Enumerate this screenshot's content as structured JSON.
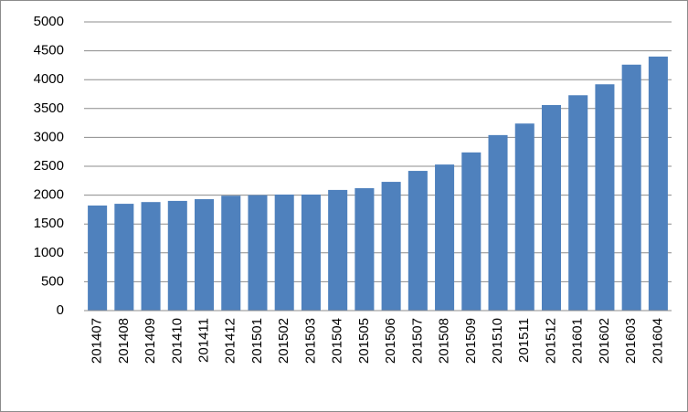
{
  "chart_data": {
    "type": "bar",
    "categories": [
      "201407",
      "201408",
      "201409",
      "201410",
      "201411",
      "201412",
      "201501",
      "201502",
      "201503",
      "201504",
      "201505",
      "201506",
      "201507",
      "201508",
      "201509",
      "201510",
      "201511",
      "201512",
      "201601",
      "201602",
      "201603",
      "201604"
    ],
    "values": [
      1820,
      1850,
      1880,
      1900,
      1930,
      1990,
      2000,
      2010,
      2010,
      2090,
      2120,
      2230,
      2420,
      2530,
      2740,
      3040,
      3240,
      3560,
      3730,
      3920,
      4260,
      4400
    ],
    "color": "#4f81bd",
    "ylim": [
      0,
      5000
    ],
    "yticks": [
      0,
      500,
      1000,
      1500,
      2000,
      2500,
      3000,
      3500,
      4000,
      4500,
      5000
    ],
    "grid": true
  }
}
